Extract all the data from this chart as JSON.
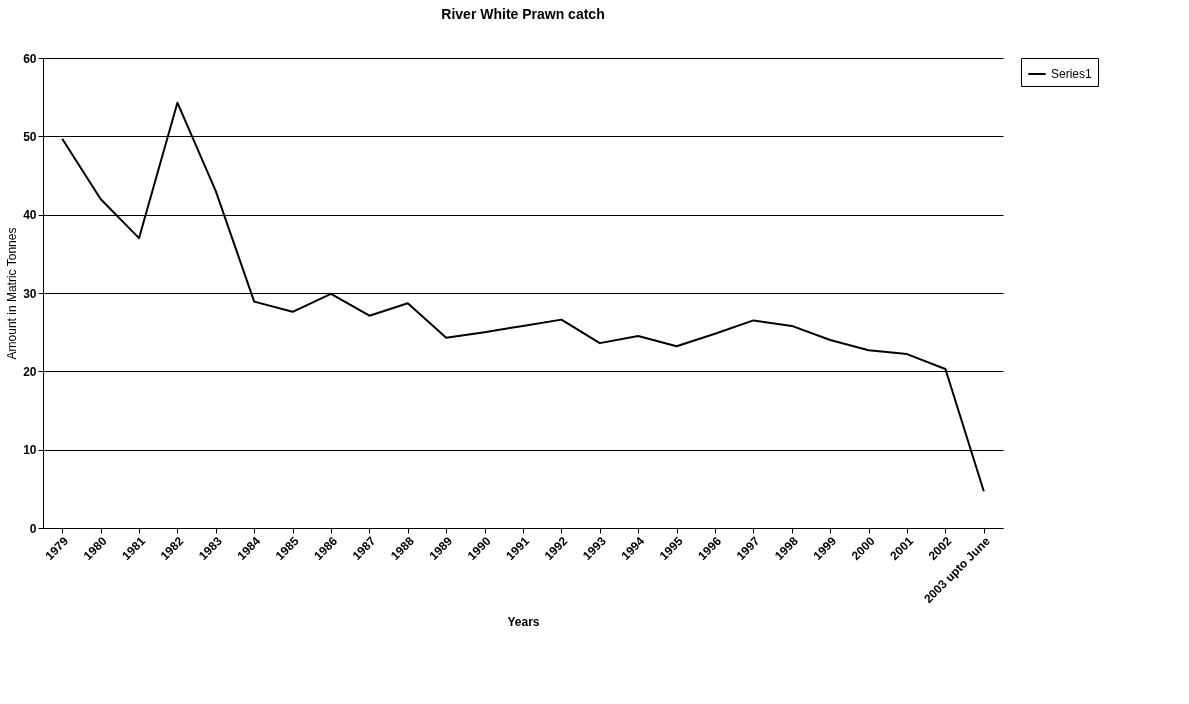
{
  "chart_data": {
    "type": "line",
    "title": "River White Prawn catch",
    "xlabel": "Years",
    "ylabel": "Amount in Matric Tonnes",
    "categories": [
      "1979",
      "1980",
      "1981",
      "1982",
      "1983",
      "1984",
      "1985",
      "1986",
      "1987",
      "1988",
      "1989",
      "1990",
      "1991",
      "1992",
      "1993",
      "1994",
      "1995",
      "1996",
      "1997",
      "1998",
      "1999",
      "2000",
      "2001",
      "2002",
      "2003 upto June"
    ],
    "series": [
      {
        "name": "Series1",
        "color": "#000000",
        "values": [
          49.7,
          42,
          37,
          54.3,
          43,
          28.9,
          27.6,
          29.9,
          27.1,
          28.7,
          24.3,
          25,
          25.8,
          26.6,
          23.6,
          24.5,
          23.2,
          24.8,
          26.5,
          25.8,
          24,
          22.7,
          22.2,
          20.3,
          4.7
        ]
      }
    ],
    "ylim": [
      0,
      60
    ],
    "yticks": [
      0,
      10,
      20,
      30,
      40,
      50,
      60
    ],
    "grid": "y",
    "legend": "right",
    "marker": "none",
    "line_style": "solid"
  }
}
